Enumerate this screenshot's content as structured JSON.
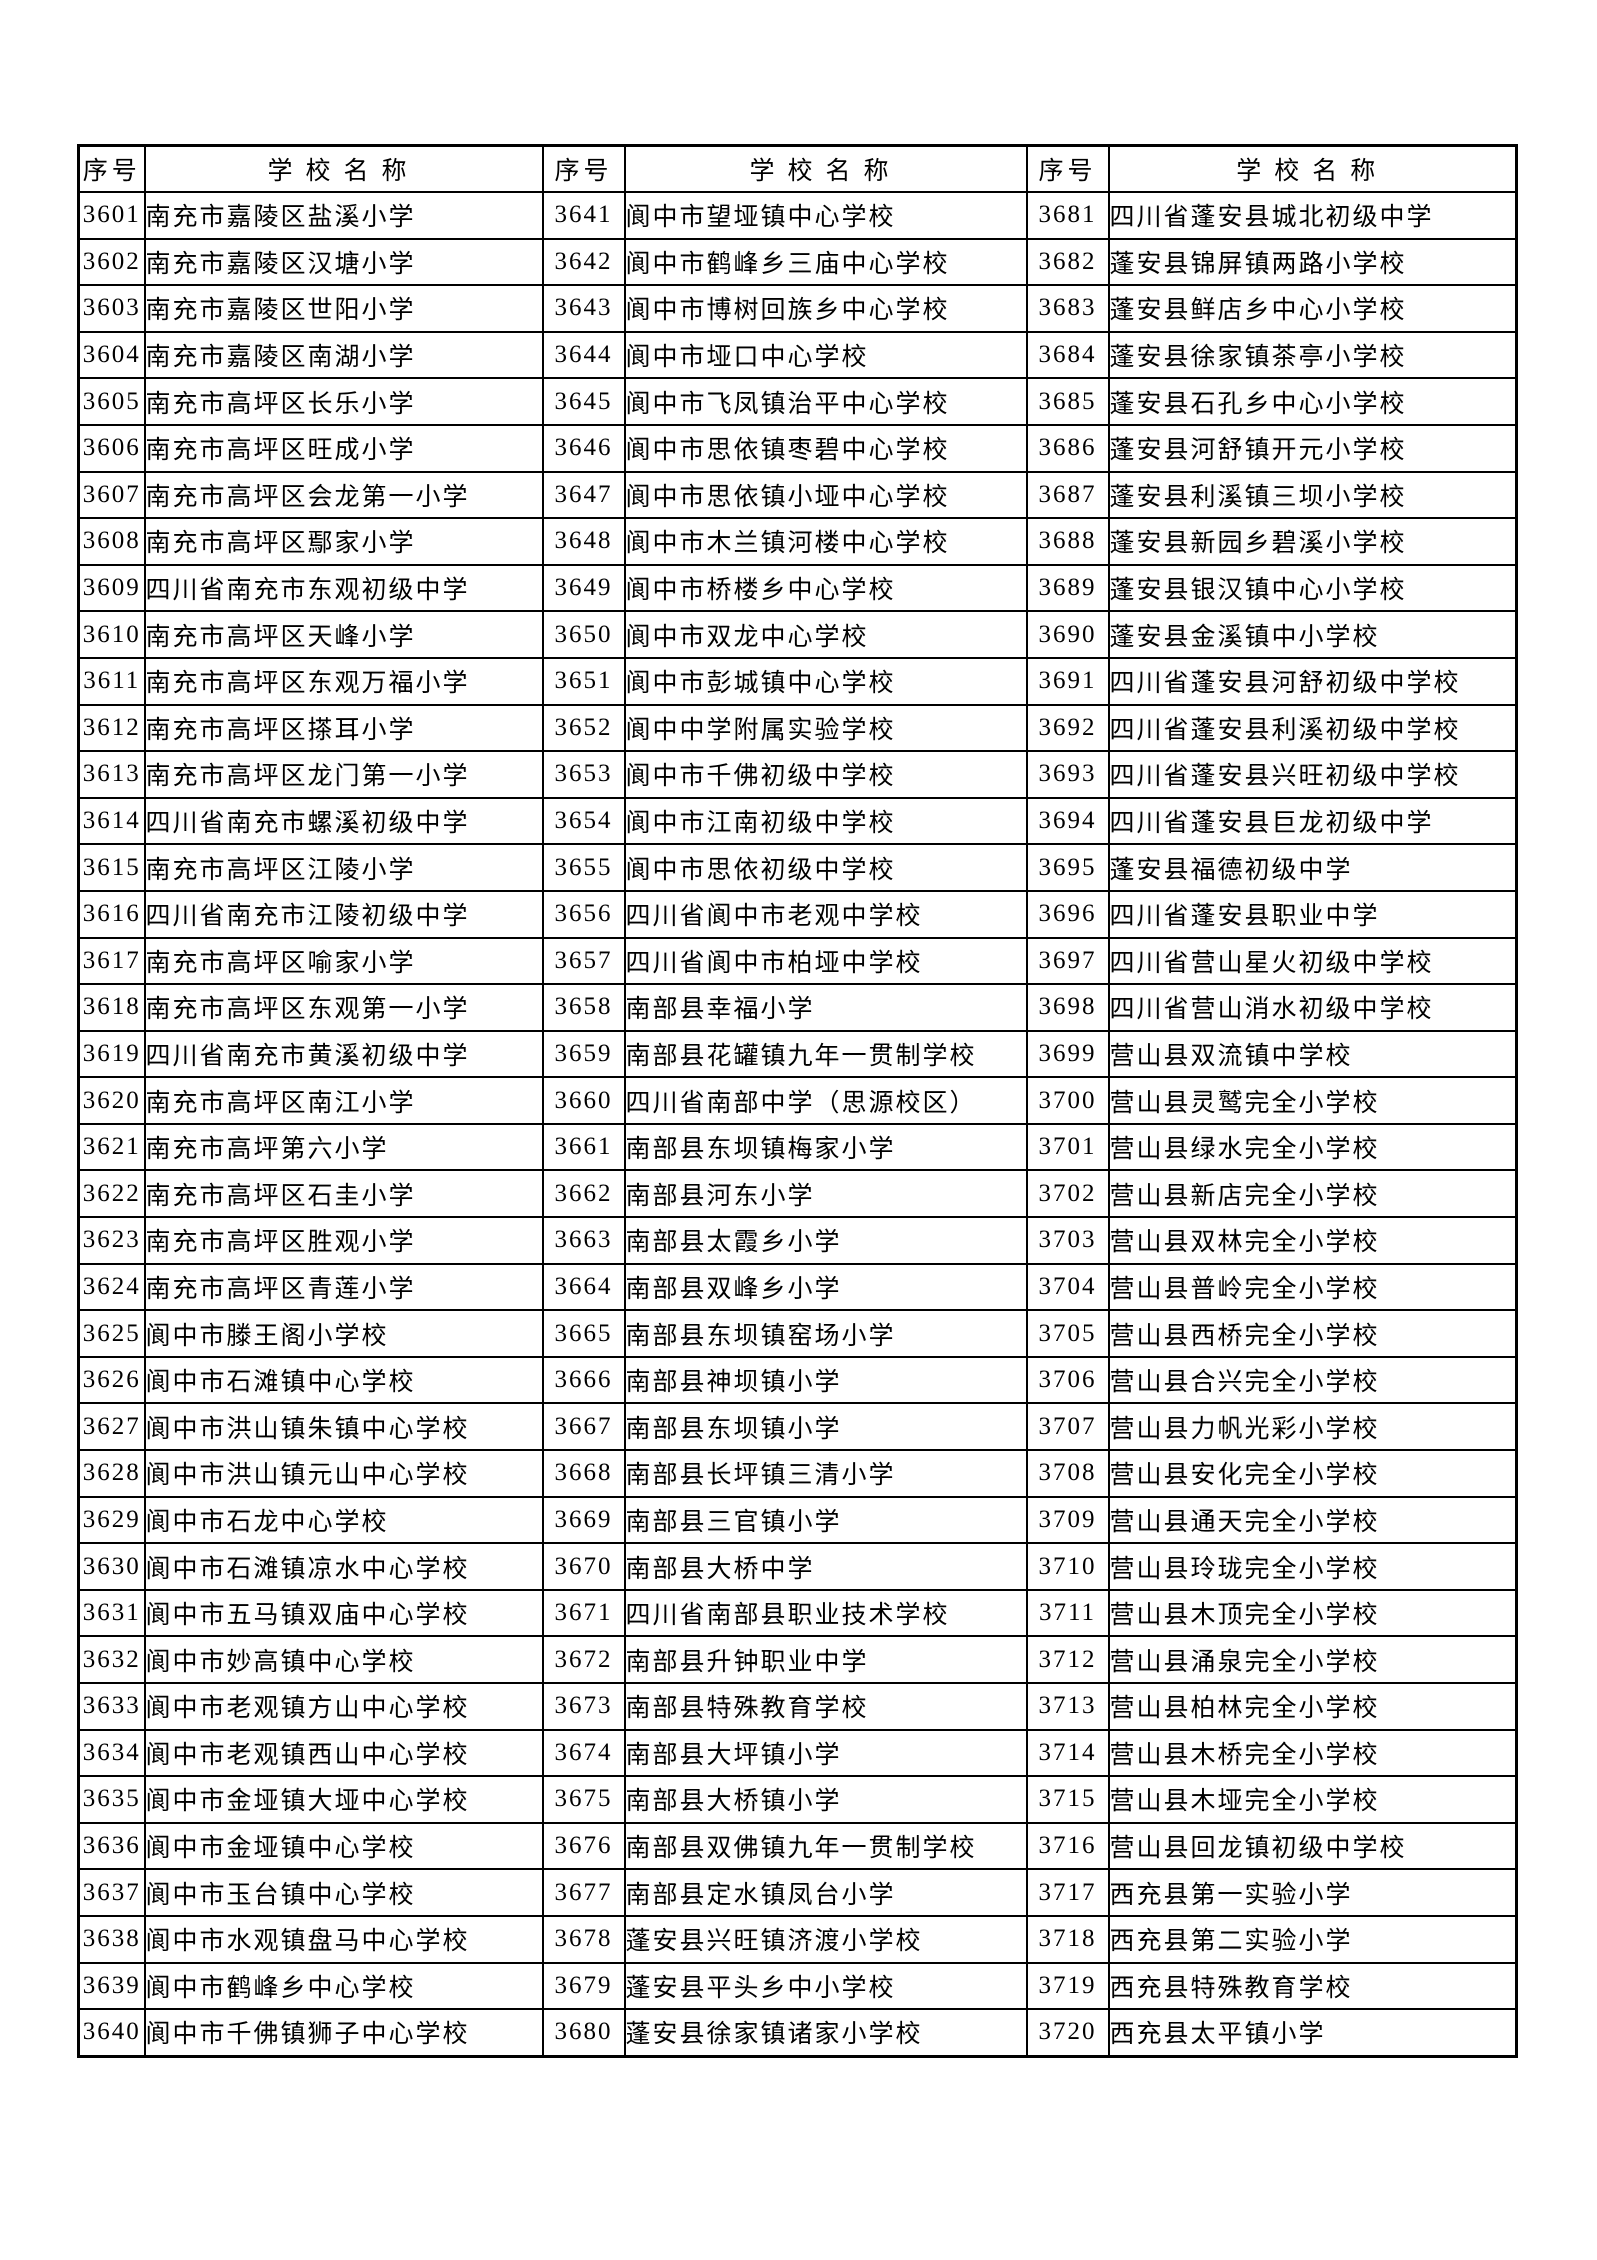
{
  "table": {
    "header": {
      "id_label": "序号",
      "name_label": "学校名称"
    },
    "groups": [
      {
        "entries": [
          {
            "id": "3601",
            "name": "南充市嘉陵区盐溪小学"
          },
          {
            "id": "3602",
            "name": "南充市嘉陵区汉塘小学"
          },
          {
            "id": "3603",
            "name": "南充市嘉陵区世阳小学"
          },
          {
            "id": "3604",
            "name": "南充市嘉陵区南湖小学"
          },
          {
            "id": "3605",
            "name": "南充市高坪区长乐小学"
          },
          {
            "id": "3606",
            "name": "南充市高坪区旺成小学"
          },
          {
            "id": "3607",
            "name": "南充市高坪区会龙第一小学"
          },
          {
            "id": "3608",
            "name": "南充市高坪区鄢家小学"
          },
          {
            "id": "3609",
            "name": "四川省南充市东观初级中学"
          },
          {
            "id": "3610",
            "name": "南充市高坪区天峰小学"
          },
          {
            "id": "3611",
            "name": "南充市高坪区东观万福小学"
          },
          {
            "id": "3612",
            "name": "南充市高坪区搽耳小学"
          },
          {
            "id": "3613",
            "name": "南充市高坪区龙门第一小学"
          },
          {
            "id": "3614",
            "name": "四川省南充市螺溪初级中学"
          },
          {
            "id": "3615",
            "name": "南充市高坪区江陵小学"
          },
          {
            "id": "3616",
            "name": "四川省南充市江陵初级中学"
          },
          {
            "id": "3617",
            "name": "南充市高坪区喻家小学"
          },
          {
            "id": "3618",
            "name": "南充市高坪区东观第一小学"
          },
          {
            "id": "3619",
            "name": "四川省南充市黄溪初级中学"
          },
          {
            "id": "3620",
            "name": "南充市高坪区南江小学"
          },
          {
            "id": "3621",
            "name": "南充市高坪第六小学"
          },
          {
            "id": "3622",
            "name": "南充市高坪区石圭小学"
          },
          {
            "id": "3623",
            "name": "南充市高坪区胜观小学"
          },
          {
            "id": "3624",
            "name": "南充市高坪区青莲小学"
          },
          {
            "id": "3625",
            "name": "阆中市滕王阁小学校"
          },
          {
            "id": "3626",
            "name": "阆中市石滩镇中心学校"
          },
          {
            "id": "3627",
            "name": "阆中市洪山镇朱镇中心学校"
          },
          {
            "id": "3628",
            "name": "阆中市洪山镇元山中心学校"
          },
          {
            "id": "3629",
            "name": "阆中市石龙中心学校"
          },
          {
            "id": "3630",
            "name": "阆中市石滩镇凉水中心学校"
          },
          {
            "id": "3631",
            "name": "阆中市五马镇双庙中心学校"
          },
          {
            "id": "3632",
            "name": "阆中市妙高镇中心学校"
          },
          {
            "id": "3633",
            "name": "阆中市老观镇方山中心学校"
          },
          {
            "id": "3634",
            "name": "阆中市老观镇西山中心学校"
          },
          {
            "id": "3635",
            "name": "阆中市金垭镇大垭中心学校"
          },
          {
            "id": "3636",
            "name": "阆中市金垭镇中心学校"
          },
          {
            "id": "3637",
            "name": "阆中市玉台镇中心学校"
          },
          {
            "id": "3638",
            "name": "阆中市水观镇盘马中心学校"
          },
          {
            "id": "3639",
            "name": "阆中市鹤峰乡中心学校"
          },
          {
            "id": "3640",
            "name": "阆中市千佛镇狮子中心学校"
          }
        ]
      },
      {
        "entries": [
          {
            "id": "3641",
            "name": "阆中市望垭镇中心学校"
          },
          {
            "id": "3642",
            "name": "阆中市鹤峰乡三庙中心学校"
          },
          {
            "id": "3643",
            "name": "阆中市博树回族乡中心学校"
          },
          {
            "id": "3644",
            "name": "阆中市垭口中心学校"
          },
          {
            "id": "3645",
            "name": "阆中市飞凤镇治平中心学校"
          },
          {
            "id": "3646",
            "name": "阆中市思依镇枣碧中心学校"
          },
          {
            "id": "3647",
            "name": "阆中市思依镇小垭中心学校"
          },
          {
            "id": "3648",
            "name": "阆中市木兰镇河楼中心学校"
          },
          {
            "id": "3649",
            "name": "阆中市桥楼乡中心学校"
          },
          {
            "id": "3650",
            "name": "阆中市双龙中心学校"
          },
          {
            "id": "3651",
            "name": "阆中市彭城镇中心学校"
          },
          {
            "id": "3652",
            "name": "阆中中学附属实验学校"
          },
          {
            "id": "3653",
            "name": "阆中市千佛初级中学校"
          },
          {
            "id": "3654",
            "name": "阆中市江南初级中学校"
          },
          {
            "id": "3655",
            "name": "阆中市思依初级中学校"
          },
          {
            "id": "3656",
            "name": "四川省阆中市老观中学校"
          },
          {
            "id": "3657",
            "name": "四川省阆中市柏垭中学校"
          },
          {
            "id": "3658",
            "name": "南部县幸福小学"
          },
          {
            "id": "3659",
            "name": "南部县花罐镇九年一贯制学校"
          },
          {
            "id": "3660",
            "name": "四川省南部中学（思源校区）"
          },
          {
            "id": "3661",
            "name": "南部县东坝镇梅家小学"
          },
          {
            "id": "3662",
            "name": "南部县河东小学"
          },
          {
            "id": "3663",
            "name": "南部县太霞乡小学"
          },
          {
            "id": "3664",
            "name": "南部县双峰乡小学"
          },
          {
            "id": "3665",
            "name": "南部县东坝镇窑场小学"
          },
          {
            "id": "3666",
            "name": "南部县神坝镇小学"
          },
          {
            "id": "3667",
            "name": "南部县东坝镇小学"
          },
          {
            "id": "3668",
            "name": "南部县长坪镇三清小学"
          },
          {
            "id": "3669",
            "name": "南部县三官镇小学"
          },
          {
            "id": "3670",
            "name": "南部县大桥中学"
          },
          {
            "id": "3671",
            "name": "四川省南部县职业技术学校"
          },
          {
            "id": "3672",
            "name": "南部县升钟职业中学"
          },
          {
            "id": "3673",
            "name": "南部县特殊教育学校"
          },
          {
            "id": "3674",
            "name": "南部县大坪镇小学"
          },
          {
            "id": "3675",
            "name": "南部县大桥镇小学"
          },
          {
            "id": "3676",
            "name": "南部县双佛镇九年一贯制学校"
          },
          {
            "id": "3677",
            "name": "南部县定水镇凤台小学"
          },
          {
            "id": "3678",
            "name": "蓬安县兴旺镇济渡小学校"
          },
          {
            "id": "3679",
            "name": "蓬安县平头乡中小学校"
          },
          {
            "id": "3680",
            "name": "蓬安县徐家镇诸家小学校"
          }
        ]
      },
      {
        "entries": [
          {
            "id": "3681",
            "name": "四川省蓬安县城北初级中学"
          },
          {
            "id": "3682",
            "name": "蓬安县锦屏镇两路小学校"
          },
          {
            "id": "3683",
            "name": "蓬安县鲜店乡中心小学校"
          },
          {
            "id": "3684",
            "name": "蓬安县徐家镇茶亭小学校"
          },
          {
            "id": "3685",
            "name": "蓬安县石孔乡中心小学校"
          },
          {
            "id": "3686",
            "name": "蓬安县河舒镇开元小学校"
          },
          {
            "id": "3687",
            "name": "蓬安县利溪镇三坝小学校"
          },
          {
            "id": "3688",
            "name": "蓬安县新园乡碧溪小学校"
          },
          {
            "id": "3689",
            "name": "蓬安县银汉镇中心小学校"
          },
          {
            "id": "3690",
            "name": "蓬安县金溪镇中小学校"
          },
          {
            "id": "3691",
            "name": "四川省蓬安县河舒初级中学校"
          },
          {
            "id": "3692",
            "name": "四川省蓬安县利溪初级中学校"
          },
          {
            "id": "3693",
            "name": "四川省蓬安县兴旺初级中学校"
          },
          {
            "id": "3694",
            "name": "四川省蓬安县巨龙初级中学"
          },
          {
            "id": "3695",
            "name": "蓬安县福德初级中学"
          },
          {
            "id": "3696",
            "name": "四川省蓬安县职业中学"
          },
          {
            "id": "3697",
            "name": "四川省营山星火初级中学校"
          },
          {
            "id": "3698",
            "name": "四川省营山消水初级中学校"
          },
          {
            "id": "3699",
            "name": "营山县双流镇中学校"
          },
          {
            "id": "3700",
            "name": "营山县灵鹫完全小学校"
          },
          {
            "id": "3701",
            "name": "营山县绿水完全小学校"
          },
          {
            "id": "3702",
            "name": "营山县新店完全小学校"
          },
          {
            "id": "3703",
            "name": "营山县双林完全小学校"
          },
          {
            "id": "3704",
            "name": "营山县普岭完全小学校"
          },
          {
            "id": "3705",
            "name": "营山县西桥完全小学校"
          },
          {
            "id": "3706",
            "name": "营山县合兴完全小学校"
          },
          {
            "id": "3707",
            "name": "营山县力帆光彩小学校"
          },
          {
            "id": "3708",
            "name": "营山县安化完全小学校"
          },
          {
            "id": "3709",
            "name": "营山县通天完全小学校"
          },
          {
            "id": "3710",
            "name": "营山县玲珑完全小学校"
          },
          {
            "id": "3711",
            "name": "营山县木顶完全小学校"
          },
          {
            "id": "3712",
            "name": "营山县涌泉完全小学校"
          },
          {
            "id": "3713",
            "name": "营山县柏林完全小学校"
          },
          {
            "id": "3714",
            "name": "营山县木桥完全小学校"
          },
          {
            "id": "3715",
            "name": "营山县木垭完全小学校"
          },
          {
            "id": "3716",
            "name": "营山县回龙镇初级中学校"
          },
          {
            "id": "3717",
            "name": "西充县第一实验小学"
          },
          {
            "id": "3718",
            "name": "西充县第二实验小学"
          },
          {
            "id": "3719",
            "name": "西充县特殊教育学校"
          },
          {
            "id": "3720",
            "name": "西充县太平镇小学"
          }
        ]
      }
    ]
  }
}
